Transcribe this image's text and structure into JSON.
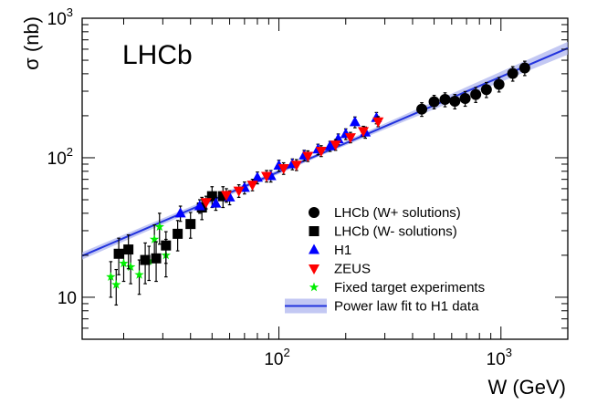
{
  "chart_data": {
    "type": "scatter",
    "title": "LHCb",
    "xlabel": "W (GeV)",
    "ylabel": "σ (nb)",
    "xscale": "log",
    "yscale": "log",
    "xlim": [
      13,
      2000
    ],
    "ylim": [
      5,
      1000
    ],
    "x_ticks": [
      {
        "value": 100,
        "base": "10",
        "exp": "2"
      },
      {
        "value": 1000,
        "base": "10",
        "exp": "3"
      }
    ],
    "y_ticks": [
      {
        "value": 10,
        "base": "10",
        "exp": ""
      },
      {
        "value": 100,
        "base": "10",
        "exp": "2"
      },
      {
        "value": 1000,
        "base": "10",
        "exp": "3"
      }
    ],
    "legend_position": "bottom-right",
    "series": [
      {
        "name": "LHCb (W+ solutions)",
        "marker": "circle",
        "color": "#000000",
        "points": [
          {
            "x": 440,
            "y": 223,
            "err": 25
          },
          {
            "x": 500,
            "y": 252,
            "err": 28
          },
          {
            "x": 560,
            "y": 262,
            "err": 30
          },
          {
            "x": 620,
            "y": 254,
            "err": 30
          },
          {
            "x": 690,
            "y": 266,
            "err": 32
          },
          {
            "x": 770,
            "y": 284,
            "err": 35
          },
          {
            "x": 860,
            "y": 308,
            "err": 38
          },
          {
            "x": 980,
            "y": 336,
            "err": 40
          },
          {
            "x": 1130,
            "y": 402,
            "err": 48
          },
          {
            "x": 1280,
            "y": 440,
            "err": 52
          }
        ]
      },
      {
        "name": "LHCb (W- solutions)",
        "marker": "square",
        "color": "#000000",
        "points": [
          {
            "x": 19,
            "y": 20.5,
            "err": 6
          },
          {
            "x": 21,
            "y": 22,
            "err": 6
          },
          {
            "x": 25,
            "y": 18.5,
            "err": 6
          },
          {
            "x": 28,
            "y": 19,
            "err": 6
          },
          {
            "x": 31,
            "y": 23.5,
            "err": 6
          },
          {
            "x": 35,
            "y": 28.5,
            "err": 7
          },
          {
            "x": 40,
            "y": 33.5,
            "err": 7
          },
          {
            "x": 45,
            "y": 44,
            "err": 8
          },
          {
            "x": 50,
            "y": 53,
            "err": 9
          },
          {
            "x": 56,
            "y": 53,
            "err": 9
          }
        ]
      },
      {
        "name": "H1",
        "marker": "triangle-up",
        "color": "#0000ff",
        "points": [
          {
            "x": 36,
            "y": 40,
            "err": 5
          },
          {
            "x": 44,
            "y": 45,
            "err": 5
          },
          {
            "x": 52,
            "y": 47,
            "err": 5
          },
          {
            "x": 60,
            "y": 52,
            "err": 6
          },
          {
            "x": 70,
            "y": 61,
            "err": 6
          },
          {
            "x": 80,
            "y": 72,
            "err": 7
          },
          {
            "x": 92,
            "y": 74,
            "err": 7
          },
          {
            "x": 100,
            "y": 88,
            "err": 8
          },
          {
            "x": 115,
            "y": 90,
            "err": 8
          },
          {
            "x": 130,
            "y": 104,
            "err": 9
          },
          {
            "x": 150,
            "y": 115,
            "err": 10
          },
          {
            "x": 170,
            "y": 121,
            "err": 10
          },
          {
            "x": 185,
            "y": 136,
            "err": 12
          },
          {
            "x": 200,
            "y": 148,
            "err": 13
          },
          {
            "x": 220,
            "y": 180,
            "err": 16
          },
          {
            "x": 245,
            "y": 152,
            "err": 14
          },
          {
            "x": 275,
            "y": 193,
            "err": 18
          }
        ]
      },
      {
        "name": "ZEUS",
        "marker": "triangle-down",
        "color": "#ff0000",
        "points": [
          {
            "x": 47,
            "y": 48,
            "err": 5
          },
          {
            "x": 58,
            "y": 54,
            "err": 6
          },
          {
            "x": 66,
            "y": 58,
            "err": 6
          },
          {
            "x": 76,
            "y": 64,
            "err": 6
          },
          {
            "x": 88,
            "y": 74,
            "err": 7
          },
          {
            "x": 105,
            "y": 84,
            "err": 8
          },
          {
            "x": 120,
            "y": 89,
            "err": 8
          },
          {
            "x": 135,
            "y": 103,
            "err": 9
          },
          {
            "x": 155,
            "y": 112,
            "err": 10
          },
          {
            "x": 180,
            "y": 124,
            "err": 11
          },
          {
            "x": 210,
            "y": 140,
            "err": 12
          },
          {
            "x": 240,
            "y": 155,
            "err": 13
          },
          {
            "x": 280,
            "y": 182,
            "err": 15
          }
        ]
      },
      {
        "name": "Fixed target experiments",
        "marker": "star",
        "color": "#00ee00",
        "points": [
          {
            "x": 17.5,
            "y": 14,
            "err": 4
          },
          {
            "x": 18.5,
            "y": 12.3,
            "err": 3.5
          },
          {
            "x": 20,
            "y": 17.5,
            "err": 4.5
          },
          {
            "x": 21.5,
            "y": 16.5,
            "err": 4
          },
          {
            "x": 23.5,
            "y": 14.5,
            "err": 4
          },
          {
            "x": 26,
            "y": 18.2,
            "err": 5
          },
          {
            "x": 27.5,
            "y": 26,
            "err": 7
          },
          {
            "x": 29,
            "y": 32,
            "err": 8
          },
          {
            "x": 31,
            "y": 20,
            "err": 6
          }
        ]
      }
    ],
    "fit": {
      "name": "Power law fit to H1 data",
      "color": "#2233dd",
      "band_color": "#aab0ee",
      "line_points": [
        {
          "x": 13,
          "y": 19.8
        },
        {
          "x": 2000,
          "y": 610
        }
      ]
    }
  }
}
